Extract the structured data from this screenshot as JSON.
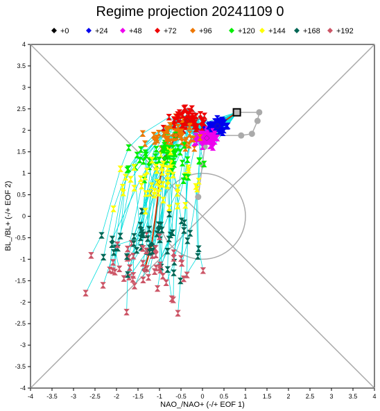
{
  "chart_data": {
    "type": "scatter",
    "title": "Regime projection 20241109 0",
    "xlabel": "NAO_/NAO+ (-/+ EOF 1)",
    "ylabel": "BL_/BL+ (-/+ EOF 2)",
    "xlim": [
      -4,
      4
    ],
    "ylim": [
      -4,
      4
    ],
    "xticks": [
      "-4",
      "-3.5",
      "-3",
      "-2.5",
      "-2",
      "-1.5",
      "-1",
      "-0.5",
      "0",
      "0.5",
      "1",
      "1.5",
      "2",
      "2.5",
      "3",
      "3.5",
      "4"
    ],
    "yticks": [
      "-4",
      "-3.5",
      "-3",
      "-2.5",
      "-2",
      "-1.5",
      "-1",
      "-0.5",
      "0",
      "0.5",
      "1",
      "1.5",
      "2",
      "2.5",
      "3",
      "3.5",
      "4"
    ],
    "legend_position": "top",
    "reference_circle": {
      "center": [
        0,
        0
      ],
      "radius": 1
    },
    "diagonals": true,
    "legend": [
      {
        "label": "+0",
        "color": "#000000",
        "marker": "diamond"
      },
      {
        "label": "+24",
        "color": "#0000ee",
        "marker": "diamond"
      },
      {
        "label": "+48",
        "color": "#ee00ee",
        "marker": "diamond"
      },
      {
        "label": "+72",
        "color": "#ee0000",
        "marker": "diamond"
      },
      {
        "label": "+96",
        "color": "#ee7700",
        "marker": "diamond"
      },
      {
        "label": "+120",
        "color": "#00ee00",
        "marker": "diamond"
      },
      {
        "label": "+144",
        "color": "#ffff00",
        "marker": "diamond"
      },
      {
        "label": "+168",
        "color": "#006655",
        "marker": "diamond"
      },
      {
        "label": "+192",
        "color": "#cc5566",
        "marker": "diamond"
      }
    ],
    "colors": {
      "ensemble_track": "#00dddd",
      "analysis_track": "#aaaaaa",
      "mean_track": "#cc3300",
      "guides": "#aaaaaa"
    },
    "analysis_track": [
      [
        0.8,
        2.42
      ],
      [
        1.32,
        2.42
      ],
      [
        1.28,
        2.22
      ],
      [
        1.15,
        1.92
      ],
      [
        0.9,
        1.88
      ],
      [
        0.3,
        1.88
      ],
      [
        0.05,
        1.62
      ],
      [
        0.0,
        1.2
      ],
      [
        -0.1,
        0.45
      ]
    ],
    "mean_track": [
      [
        0.8,
        2.42
      ],
      [
        0.35,
        2.1
      ],
      [
        0.1,
        1.82
      ],
      [
        -0.35,
        2.22
      ],
      [
        -0.62,
        1.88
      ],
      [
        -0.88,
        1.35
      ],
      [
        -1.0,
        0.8
      ],
      [
        -1.08,
        0.1
      ],
      [
        -1.18,
        -0.65
      ],
      [
        -1.35,
        -1.25
      ]
    ],
    "lead_mean_points": [
      {
        "lead": "+0",
        "x": 0.8,
        "y": 2.42
      },
      {
        "lead": "+24",
        "x": 0.35,
        "y": 2.1
      },
      {
        "lead": "+48",
        "x": 0.1,
        "y": 1.82
      },
      {
        "lead": "+72",
        "x": -0.35,
        "y": 2.22
      },
      {
        "lead": "+96",
        "x": -0.62,
        "y": 1.88
      },
      {
        "lead": "+120",
        "x": -0.88,
        "y": 1.35
      },
      {
        "lead": "+144",
        "x": -1.0,
        "y": 0.8
      },
      {
        "lead": "+168",
        "x": -1.18,
        "y": -0.65
      },
      {
        "lead": "+192",
        "x": -1.35,
        "y": -1.25
      }
    ],
    "lead_spread": [
      {
        "x": 0.0,
        "y": 0.0
      },
      {
        "x": 0.12,
        "y": 0.08
      },
      {
        "x": 0.12,
        "y": 0.1
      },
      {
        "x": 0.2,
        "y": 0.14
      },
      {
        "x": 0.3,
        "y": 0.17
      },
      {
        "x": 0.38,
        "y": 0.28
      },
      {
        "x": 0.45,
        "y": 0.38
      },
      {
        "x": 0.5,
        "y": 0.42
      },
      {
        "x": 0.55,
        "y": 0.42
      }
    ],
    "ensemble_members": 51
  }
}
